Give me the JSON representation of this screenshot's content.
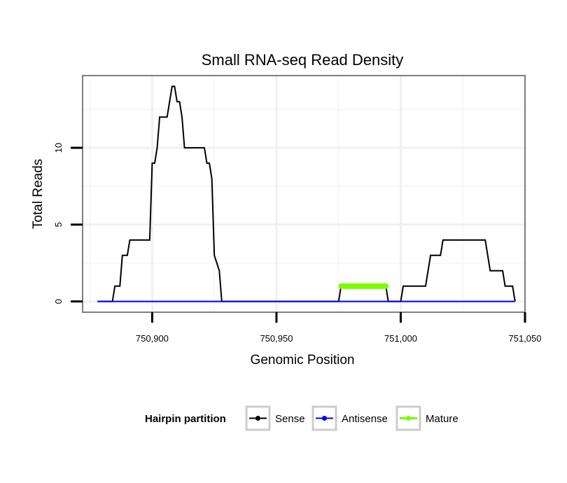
{
  "chart_data": {
    "type": "line",
    "title": "Small RNA-seq Read Density",
    "xlabel": "Genomic Position",
    "ylabel": "Total Reads",
    "xlim": [
      750872,
      751050
    ],
    "ylim": [
      -0.7,
      14.7
    ],
    "x_ticks": [
      {
        "value": 750900,
        "label": "750,900"
      },
      {
        "value": 750950,
        "label": "750,950"
      },
      {
        "value": 751000,
        "label": "751,000"
      },
      {
        "value": 751050,
        "label": "751,050"
      }
    ],
    "y_ticks": [
      {
        "value": 0,
        "label": "0"
      },
      {
        "value": 5,
        "label": "5"
      },
      {
        "value": 10,
        "label": "10"
      }
    ],
    "grid": true,
    "series": [
      {
        "name": "Sense",
        "color": "#000000",
        "x": [
          750878,
          750884,
          750885,
          750887,
          750888,
          750890,
          750891,
          750899,
          750900,
          750901,
          750902,
          750903,
          750906,
          750907,
          750908,
          750909,
          750910,
          750911,
          750912,
          750913,
          750921,
          750922,
          750923,
          750924,
          750925,
          750927,
          750928,
          750975,
          750976,
          750994,
          750995,
          751000,
          751001,
          751010,
          751012,
          751016,
          751017,
          751034,
          751036,
          751041,
          751042,
          751045,
          751046
        ],
        "y": [
          0,
          0,
          1,
          1,
          3,
          3,
          4,
          4,
          9,
          9,
          10,
          12,
          12,
          13,
          14,
          14,
          13,
          13,
          12,
          10,
          10,
          9,
          9,
          8,
          3,
          2,
          0,
          0,
          1,
          1,
          0,
          0,
          1,
          1,
          3,
          3,
          4,
          4,
          2,
          2,
          1,
          1,
          0
        ]
      },
      {
        "name": "Antisense",
        "color": "#0000ff",
        "x": [
          750878,
          751046
        ],
        "y": [
          0,
          0
        ]
      },
      {
        "name": "Mature",
        "color": "#7cfc00",
        "x": [
          750976,
          750994
        ],
        "y": [
          1,
          1
        ]
      }
    ],
    "legend": {
      "title": "Hairpin partition",
      "position": "bottom",
      "entries": [
        {
          "label": "Sense",
          "color": "#000000"
        },
        {
          "label": "Antisense",
          "color": "#0000ff"
        },
        {
          "label": "Mature",
          "color": "#7cfc00"
        }
      ]
    }
  }
}
